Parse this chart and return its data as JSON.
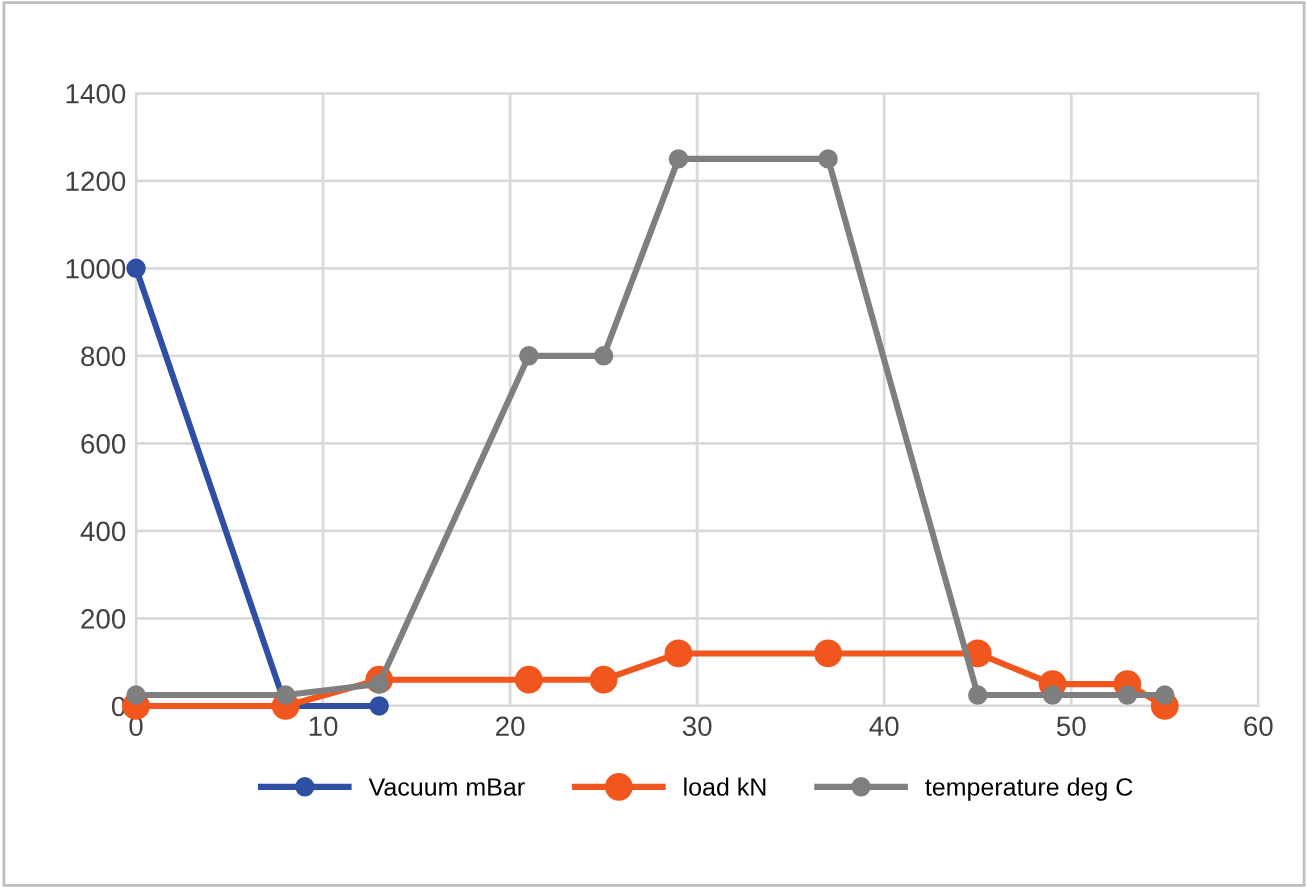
{
  "chart_data": {
    "type": "line",
    "xlim": [
      0,
      60
    ],
    "xticks": [
      0,
      10,
      20,
      30,
      40,
      50,
      60
    ],
    "ylim": [
      0,
      1400
    ],
    "yticks": [
      0,
      200,
      400,
      600,
      800,
      1000,
      1200,
      1400
    ],
    "grid": true,
    "legend": "bottom",
    "marker": "circle",
    "line_style": "solid",
    "series": [
      {
        "name": "Vacuum mBar",
        "color": "#2e4fa3",
        "x": [
          0,
          8,
          13
        ],
        "values": [
          1000,
          0,
          0
        ]
      },
      {
        "name": "load kN",
        "color": "#f0561d",
        "x": [
          0,
          8,
          13,
          21,
          25,
          29,
          37,
          45,
          49,
          53,
          55
        ],
        "values": [
          0,
          0,
          60,
          60,
          60,
          120,
          120,
          120,
          50,
          50,
          0
        ]
      },
      {
        "name": "temperature deg C",
        "color": "#7f7f7f",
        "x": [
          0,
          8,
          13,
          21,
          25,
          29,
          37,
          45,
          49,
          53,
          55
        ],
        "values": [
          25,
          25,
          50,
          800,
          800,
          1250,
          1250,
          25,
          25,
          25,
          25
        ]
      }
    ]
  }
}
